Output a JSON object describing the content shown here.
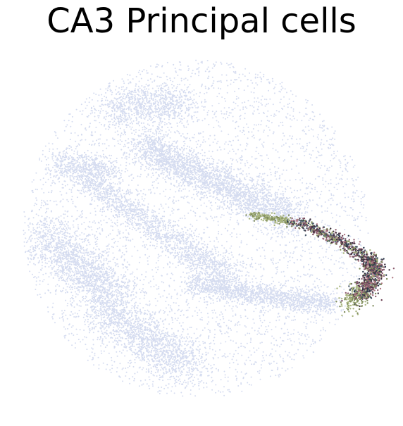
{
  "title": "CA3 Principal cells",
  "colors": {
    "background_cells": "#d5dcf0",
    "highlight_palette": [
      "#2b3a4a",
      "#6e4456",
      "#8f6072",
      "#7d8a5a",
      "#a8b47e",
      "#4a5a6a",
      "#b07a86",
      "#3d2f3f"
    ]
  }
}
